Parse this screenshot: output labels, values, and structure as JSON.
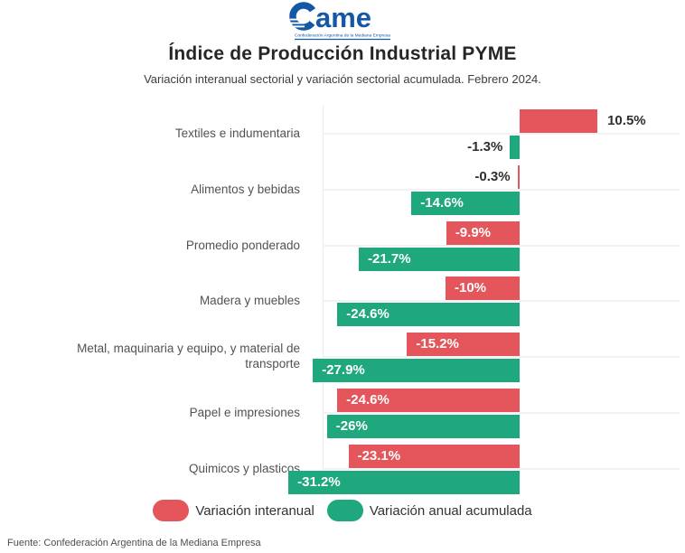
{
  "logo": {
    "wordmark_suffix": "ame",
    "tagline": "Confederación Argentina de la Mediana Empresa",
    "color": "#1457a5"
  },
  "header": {
    "title": "Índice de Producción Industrial PYME",
    "subtitle": "Variación interanual sectorial y variación sectorial acumulada. Febrero 2024."
  },
  "chart_data": {
    "type": "bar",
    "orientation": "horizontal",
    "title": "Índice de Producción Industrial PYME",
    "subtitle": "Variación interanual sectorial y variación sectorial acumulada. Febrero 2024.",
    "value_unit": "%",
    "value_range": [
      -31.2,
      10.5
    ],
    "grid": true,
    "legend_position": "bottom",
    "categories": [
      "Textiles e indumentaria",
      "Alimentos y bebidas",
      "Promedio ponderado",
      "Madera y muebles",
      "Metal, maquinaria y equipo, y material de transporte",
      "Papel e impresiones",
      "Quimicos y plasticos"
    ],
    "series": [
      {
        "name": "Variación interanual",
        "color": "#e4565b",
        "values": [
          10.5,
          -0.3,
          -9.9,
          -10,
          -15.2,
          -24.6,
          -23.1
        ],
        "labels": [
          "10.5%",
          "-0.3%",
          "-9.9%",
          "-10%",
          "-15.2%",
          "-24.6%",
          "-23.1%"
        ],
        "label_placement": [
          "outside",
          "outside",
          "inside",
          "inside",
          "inside",
          "inside",
          "inside"
        ]
      },
      {
        "name": "Variación anual acumulada",
        "color": "#1fa77d",
        "values": [
          -1.3,
          -14.6,
          -21.7,
          -24.6,
          -27.9,
          -26,
          -31.2
        ],
        "labels": [
          "-1.3%",
          "-14.6%",
          "-21.7%",
          "-24.6%",
          "-27.9%",
          "-26%",
          "-31.2%"
        ],
        "label_placement": [
          "outside",
          "inside",
          "inside",
          "inside",
          "inside",
          "inside",
          "inside"
        ]
      }
    ]
  },
  "legend": {
    "items": [
      {
        "label": "Variación interanual",
        "color": "#e4565b"
      },
      {
        "label": "Variación anual acumulada",
        "color": "#1fa77d"
      }
    ]
  },
  "footer": {
    "source": "Fuente: Confederación Argentina de la Mediana Empresa"
  }
}
